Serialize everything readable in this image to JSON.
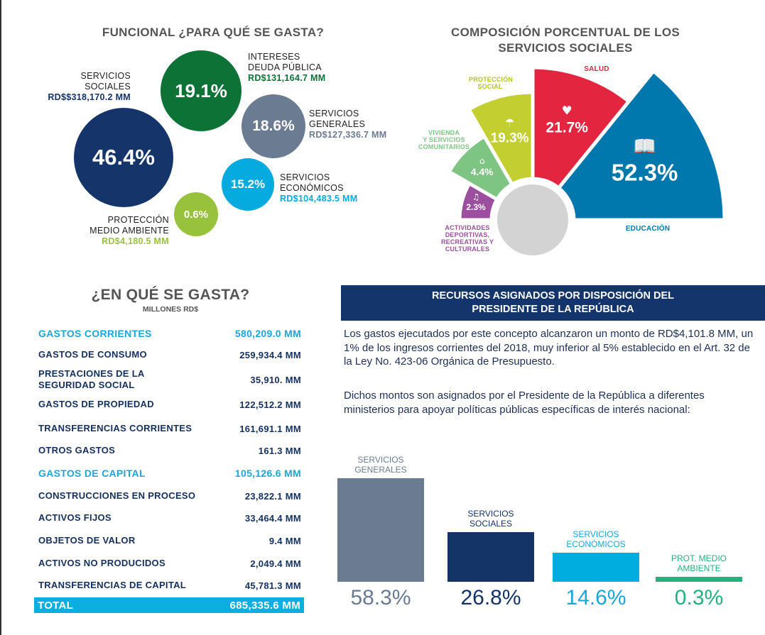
{
  "functional": {
    "title": "FUNCIONAL  ¿PARA QUÉ SE GASTA?",
    "items": [
      {
        "name_l1": "SERVICIOS",
        "name_l2": "SOCIALES",
        "amount": "RD$$318,170.2 MM",
        "pct": "46.4%",
        "color": "#15346a"
      },
      {
        "name_l1": "INTERESES",
        "name_l2": "DEUDA PÚBLICA",
        "amount": "RD$131,164.7 MM",
        "pct": "19.1%",
        "color": "#0c7236"
      },
      {
        "name_l1": "SERVICIOS",
        "name_l2": "GENERALES",
        "amount": "RD$127,336.7 MM",
        "pct": "18.6%",
        "color": "#6b7b91"
      },
      {
        "name_l1": "SERVICIOS",
        "name_l2": "ECONÓMICOS",
        "amount": "RD$104,483.5 MM",
        "pct": "15.2%",
        "color": "#05aadf"
      },
      {
        "name_l1": "PROTECCIÓN",
        "name_l2": "MEDIO AMBIENTE",
        "amount": "RD$4,180.5 MM",
        "pct": "0.6%",
        "color": "#98c23c"
      }
    ]
  },
  "composition": {
    "title_l1": "COMPOSICIÓN PORCENTUAL DE LOS",
    "title_l2": "SERVICIOS SOCIALES",
    "segments": [
      {
        "label": [
          "ACTIVIDADES",
          "DEPORTIVAS,",
          "RECREATIVAS Y",
          "CULTURALES"
        ],
        "pct": "2.3%",
        "value": 2.3,
        "color": "#9b4f9e",
        "icon": "music-note-icon"
      },
      {
        "label": [
          "VIVIENDA",
          "Y SERVICIOS",
          "COMUNITARIOS"
        ],
        "pct": "4.4%",
        "value": 4.4,
        "color": "#7ec584",
        "icon": "house-icon"
      },
      {
        "label": [
          "PROTECCIÓN",
          "SOCIAL"
        ],
        "pct": "19.3%",
        "value": 19.3,
        "color": "#c3cf30",
        "icon": "umbrella-person-icon"
      },
      {
        "label": [
          "SALUD"
        ],
        "pct": "21.7%",
        "value": 21.7,
        "color": "#e4253f",
        "icon": "heartbeat-icon"
      },
      {
        "label": [
          "EDUCACIÓN"
        ],
        "pct": "52.3%",
        "value": 52.3,
        "color": "#0077ad",
        "icon": "reading-book-icon"
      }
    ]
  },
  "spending": {
    "title": "¿EN QUÉ SE GASTA?",
    "subtitle": "MILLONES RD$",
    "rows": [
      {
        "label": "GASTOS CORRIENTES",
        "value": "580,209.0 MM",
        "highlight": true
      },
      {
        "label": "GASTOS DE CONSUMO",
        "value": "259,934.4 MM"
      },
      {
        "label": "PRESTACIONES DE LA\nSEGURIDAD SOCIAL",
        "value": "35,910. MM"
      },
      {
        "label": "GASTOS DE PROPIEDAD",
        "value": "122,512.2 MM"
      },
      {
        "label": "TRANSFERENCIAS CORRIENTES",
        "value": "161,691.1 MM"
      },
      {
        "label": "OTROS GASTOS",
        "value": "161.3 MM"
      },
      {
        "label": "GASTOS DE CAPITAL",
        "value": "105,126.6 MM",
        "highlight": true
      },
      {
        "label": "CONSTRUCCIONES EN PROCESO",
        "value": "23,822.1 MM"
      },
      {
        "label": "ACTIVOS FIJOS",
        "value": "33,464.4 MM"
      },
      {
        "label": "OBJETOS DE VALOR",
        "value": "9.4 MM"
      },
      {
        "label": "ACTIVOS NO PRODUCIDOS",
        "value": "2,049.4 MM"
      },
      {
        "label": "TRANSFERENCIAS DE CAPITAL",
        "value": "45,781.3 MM"
      }
    ],
    "total_label": "TOTAL",
    "total_value": "685,335.6 MM"
  },
  "presidential": {
    "banner_l1": "RECURSOS ASIGNADOS POR DISPOSICIÓN DEL",
    "banner_l2": "PRESIDENTE DE LA REPÚBLICA",
    "para1": "Los gastos ejecutados por este concepto alcanzaron un monto de RD$4,101.8 MM, un 1% de los ingresos corrientes del 2018, muy inferior al 5% establecido en el Art. 32 de la Ley No. 423-06 Orgánica de Presupuesto.",
    "para2": "Dichos montos son asignados por el Presidente de la República a diferentes ministerios para apoyar políticas públicas específicas de interés nacional:"
  },
  "chart_data": [
    {
      "type": "bubble",
      "title": "FUNCIONAL  ¿PARA QUÉ SE GASTA?",
      "categories": [
        "SERVICIOS SOCIALES",
        "INTERESES DEUDA PÚBLICA",
        "SERVICIOS GENERALES",
        "SERVICIOS ECONÓMICOS",
        "PROTECCIÓN MEDIO AMBIENTE"
      ],
      "values": [
        46.4,
        19.1,
        18.6,
        15.2,
        0.6
      ],
      "amounts_mm": [
        318170.2,
        131164.7,
        127336.7,
        104483.5,
        4180.5
      ]
    },
    {
      "type": "pie",
      "title": "COMPOSICIÓN PORCENTUAL DE LOS SERVICIOS SOCIALES",
      "categories": [
        "ACTIVIDADES DEPORTIVAS, RECREATIVAS Y CULTURALES",
        "VIVIENDA Y SERVICIOS COMUNITARIOS",
        "PROTECCIÓN SOCIAL",
        "SALUD",
        "EDUCACIÓN"
      ],
      "values": [
        2.3,
        4.4,
        19.3,
        21.7,
        52.3
      ]
    },
    {
      "type": "bar",
      "categories": [
        "SERVICIOS GENERALES",
        "SERVICIOS SOCIALES",
        "SERVICIOS ECONÓMICOS",
        "PROT. MEDIO AMBIENTE"
      ],
      "labels_l1": [
        "SERVICIOS",
        "SERVICIOS",
        "SERVICIOS",
        "PROT. MEDIO"
      ],
      "labels_l2": [
        "GENERALES",
        "SOCIALES",
        "ECONÓMICOS",
        "AMBIENTE"
      ],
      "values": [
        58.3,
        26.8,
        14.6,
        0.3
      ],
      "data_labels": [
        "58.3%",
        "26.8%",
        "14.6%",
        "0.3%"
      ],
      "colors": [
        "#6b7b91",
        "#143468",
        "#00addf",
        "#25b07c"
      ],
      "label_colors": [
        "#6b7b91",
        "#143468",
        "#1aa6d8",
        "#25b07c"
      ]
    }
  ]
}
